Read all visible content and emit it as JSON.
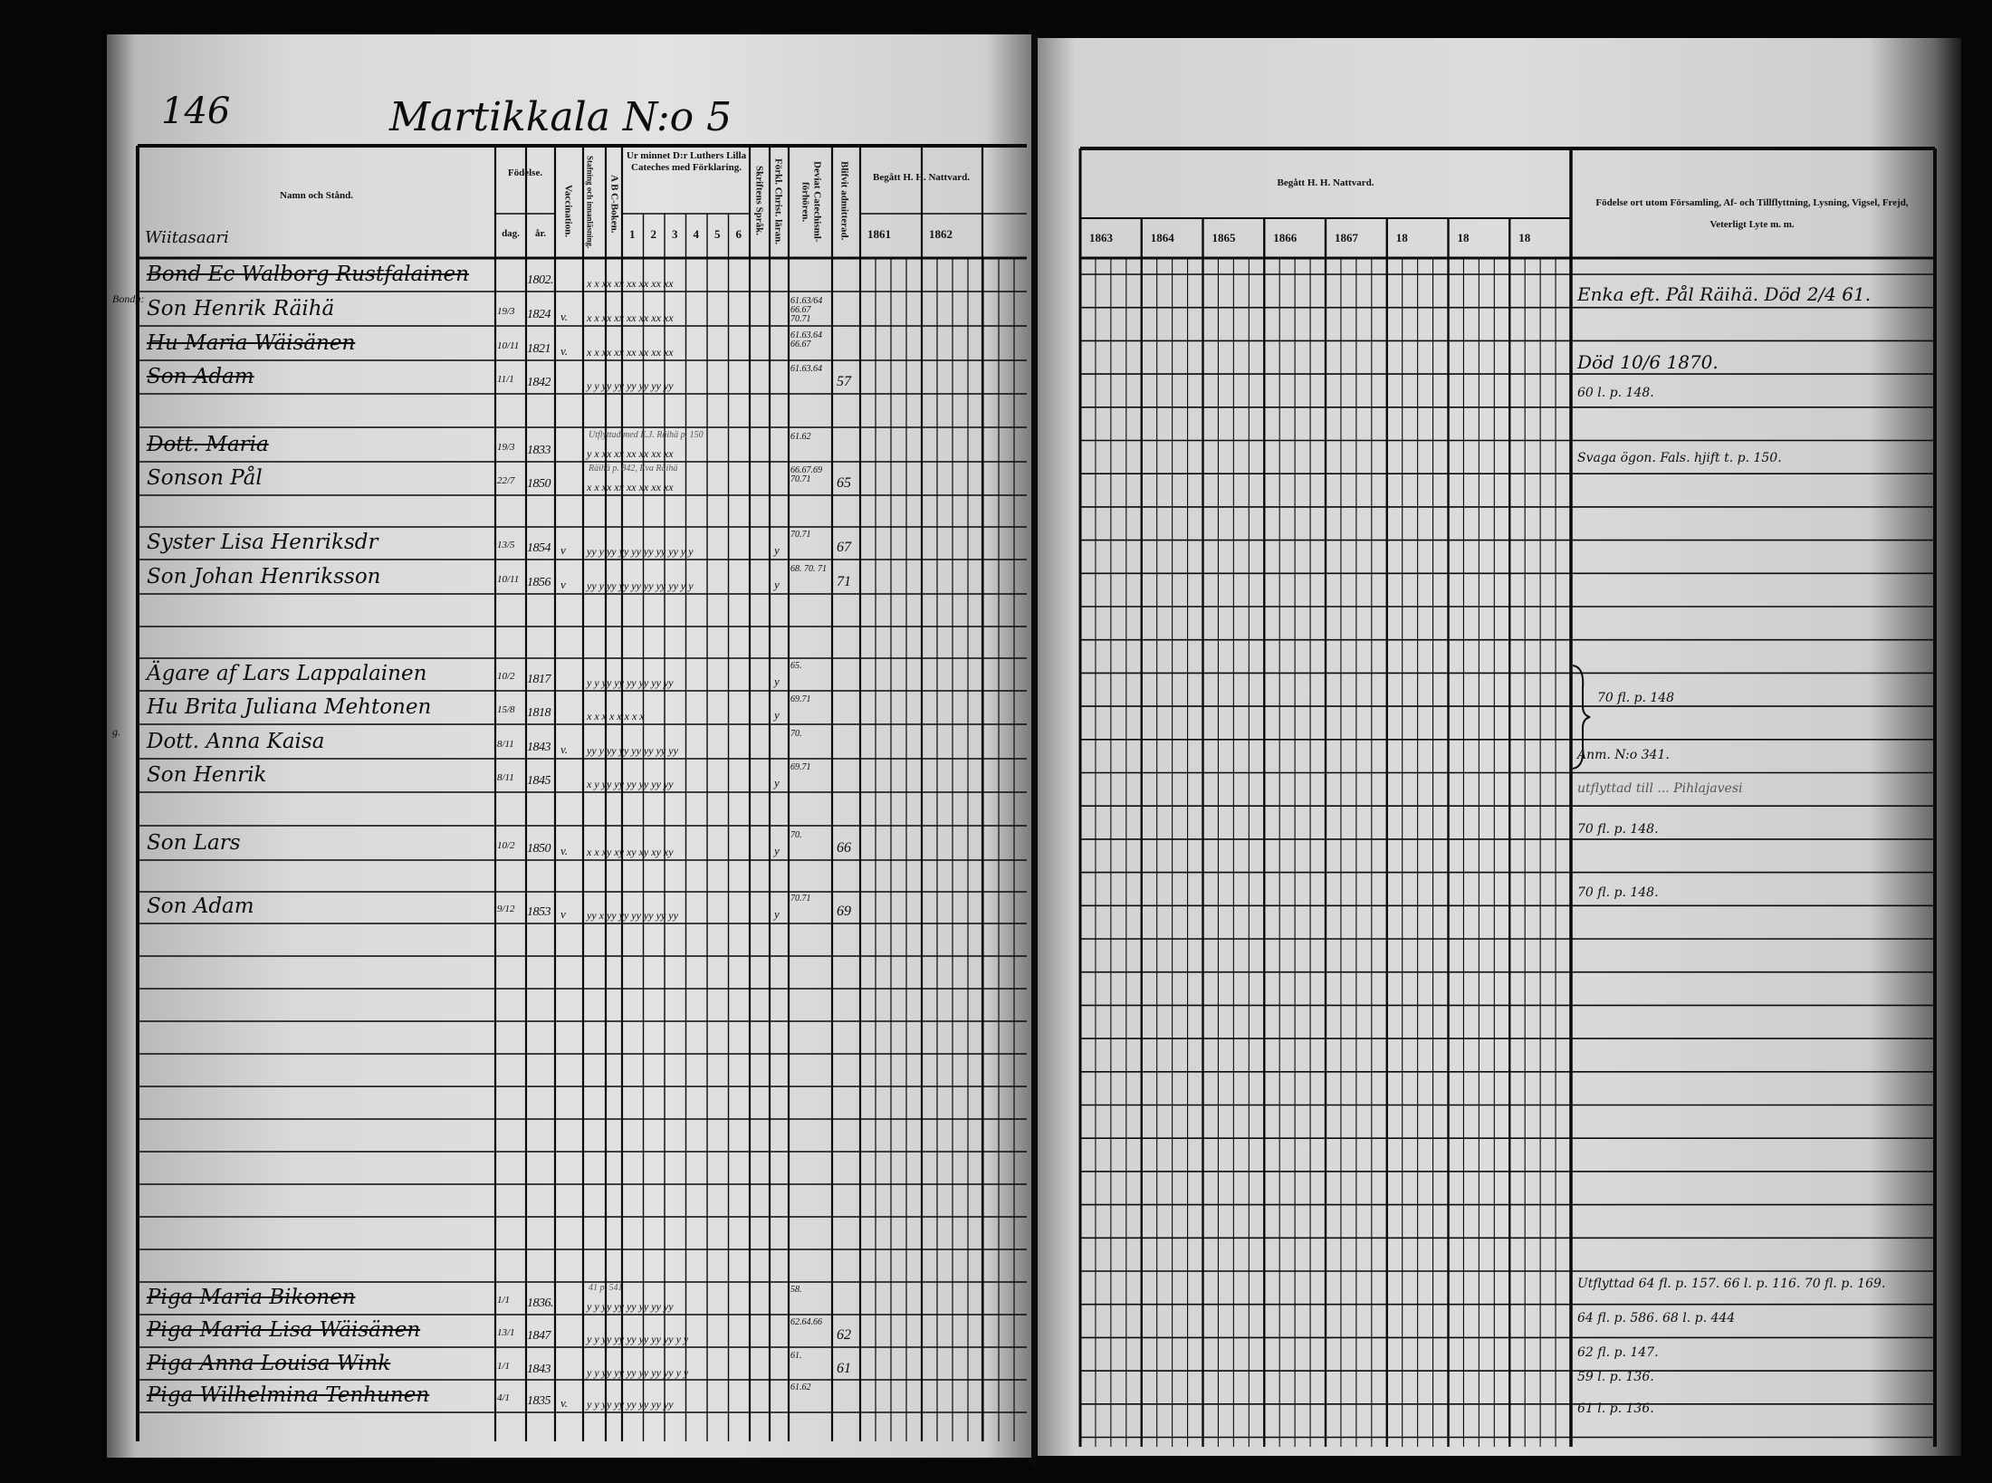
{
  "header": {
    "page_number": "146",
    "title": "Martikkala N:o 5",
    "village": "Wiitasaari"
  },
  "left_columns": {
    "name": "Namn och Stånd.",
    "birth": "Födelse.",
    "birth_day": "dag.",
    "birth_year": "år.",
    "vaccination": "Vaccination.",
    "spelling": "Stafning och innanläsning.",
    "abc": "A B C-Boken.",
    "catechism": "Ur minnet D:r Luthers Lilla Cateches med Förklaring.",
    "catechism_parts": [
      "1",
      "2",
      "3",
      "4",
      "5",
      "6"
    ],
    "scripture": "Skriftens Språk.",
    "christian_doctrine": "Förkl. Christ. läran.",
    "catechism_hearings": "Deviat Catechisml-förhören.",
    "admitted": "Blifvit admitterad.",
    "communion": "Begått H. H. Nattvard.",
    "communion_years": [
      "1861",
      "1862"
    ]
  },
  "right_columns": {
    "communion": "Begått H. H. Nattvard.",
    "communion_years": [
      "1863",
      "1864",
      "1865",
      "1866",
      "1867",
      "18",
      "18",
      "18"
    ],
    "remarks": "Födelse ort utom Församling, Af- och Tillflyttning, Lysning, Vigsel, Frejd, Veterligt Lyte m. m."
  },
  "entries": [
    {
      "name": "Bond Ec Walborg Rustfalainen",
      "struck": true,
      "day": "",
      "year": "1802.",
      "vacc": "",
      "marks": "x  x  xx xx xx xx xx xx",
      "scripture": "",
      "hearings": "",
      "admitted": "",
      "prefix": ""
    },
    {
      "name": "Son Henrik Räihä",
      "struck": false,
      "day": "19/3",
      "year": "1824",
      "vacc": "v.",
      "marks": "x  x  xx xx xx xx xx xx",
      "scripture": "",
      "hearings": "61.63/64 66.67 70.71",
      "admitted": "",
      "prefix": "Bondg:"
    },
    {
      "name": "Hu Maria Wäisänen",
      "struck": true,
      "day": "10/11",
      "year": "1821",
      "vacc": "v.",
      "marks": "x  x  xx xx xx xx xx xx",
      "scripture": "",
      "hearings": "61.63.64 66.67",
      "admitted": "",
      "prefix": ""
    },
    {
      "name": "Son Adam",
      "struck": true,
      "day": "11/1",
      "year": "1842",
      "vacc": "",
      "marks": "y  y  yy yy yy yy yy yy",
      "scripture": "",
      "hearings": "61.63.64",
      "admitted": "57",
      "prefix": ""
    },
    {
      "name": "Dott. Maria",
      "struck": true,
      "day": "19/3",
      "year": "1833",
      "vacc": "",
      "marks": "y  x  xx xx xx xx xx xx",
      "scripture": "",
      "hearings": "61.62",
      "admitted": "",
      "prefix": "",
      "note": "Utflyttad med E.J. Räihä p. 150"
    },
    {
      "name": "Sonson Pål",
      "struck": false,
      "day": "22/7",
      "year": "1850",
      "vacc": "",
      "marks": "x  x  xx xx xx xx xx xx",
      "scripture": "",
      "hearings": "66.67.69 70.71",
      "admitted": "65",
      "prefix": "",
      "note": "Räihä p. 842, Eva Räihä"
    },
    {
      "name": "Syster Lisa Henriksdr",
      "struck": false,
      "day": "13/5",
      "year": "1854",
      "vacc": "v",
      "marks": "yy y  yy yy yy yy yy yy  y  y",
      "scripture": "y",
      "hearings": "70.71",
      "admitted": "67",
      "prefix": ""
    },
    {
      "name": "Son Johan Henriksson",
      "struck": false,
      "day": "10/11",
      "year": "1856",
      "vacc": "v",
      "marks": "yy y  yy yy yy yy yy yy  y  y",
      "scripture": "y",
      "hearings": "68. 70. 71",
      "admitted": "71",
      "prefix": ""
    },
    {
      "name": "Ägare af Lars Lappalainen",
      "struck": false,
      "day": "10/2",
      "year": "1817",
      "vacc": "",
      "marks": "y  y  yy yy yy yy yy yy",
      "scripture": "y",
      "hearings": "65.",
      "admitted": "",
      "prefix": ""
    },
    {
      "name": "Hu Brita Juliana Mehtonen",
      "struck": false,
      "day": "15/8",
      "year": "1818",
      "vacc": "",
      "marks": "x  x  x  x  x  x  x  x",
      "scripture": "y",
      "hearings": "69.71",
      "admitted": "",
      "prefix": ""
    },
    {
      "name": "Dott. Anna Kaisa",
      "struck": false,
      "day": "8/11",
      "year": "1843",
      "vacc": "v.",
      "marks": "yy y  yy yy yy yy yy yy",
      "scripture": "",
      "hearings": "70.",
      "admitted": "",
      "prefix": "g."
    },
    {
      "name": "Son Henrik",
      "struck": false,
      "day": "8/11",
      "year": "1845",
      "vacc": "",
      "marks": "x  y  yy yy yy yy yy yy",
      "scripture": "y",
      "hearings": "69.71",
      "admitted": "",
      "prefix": ""
    },
    {
      "name": "Son Lars",
      "struck": false,
      "day": "10/2",
      "year": "1850",
      "vacc": "v.",
      "marks": "x  x  xy xy xy xy xy xy",
      "scripture": "y",
      "hearings": "70.",
      "admitted": "66",
      "prefix": ""
    },
    {
      "name": "Son Adam",
      "struck": false,
      "day": "9/12",
      "year": "1853",
      "vacc": "v",
      "marks": "yy x  yy yy yy yy yy yy",
      "scripture": "y",
      "hearings": "70.71",
      "admitted": "69",
      "prefix": ""
    },
    {
      "name": "Piga Maria Bikonen",
      "struck": true,
      "day": "1/1",
      "year": "1836.",
      "vacc": "",
      "marks": "y  y  yy yy yy yy yy yy",
      "scripture": "",
      "hearings": "58.",
      "admitted": "",
      "prefix": "",
      "note": "41 p. 541"
    },
    {
      "name": "Piga Maria Lisa Wäisänen",
      "struck": true,
      "day": "13/1",
      "year": "1847",
      "vacc": "",
      "marks": "y  y  yy yy yy yy yy yy  y  y",
      "scripture": "",
      "hearings": "62.64.66",
      "admitted": "62",
      "prefix": ""
    },
    {
      "name": "Piga Anna Louisa Wink",
      "struck": true,
      "day": "1/1",
      "year": "1843",
      "vacc": "",
      "marks": "y  y  yy yy yy yy yy yy  y  y",
      "scripture": "",
      "hearings": "61.",
      "admitted": "61",
      "prefix": ""
    },
    {
      "name": "Piga Wilhelmina Tenhunen",
      "struck": true,
      "day": "4/1",
      "year": "1835",
      "vacc": "v.",
      "marks": "y  y  yy yy yy yy yy yy",
      "scripture": "",
      "hearings": "61.62",
      "admitted": "",
      "prefix": ""
    }
  ],
  "remarks": [
    {
      "text": "Enka eft. Pål Räihä. Död 2/4 61."
    },
    {
      "text": "Död 10/6 1870."
    },
    {
      "text": "60 l. p. 148."
    },
    {
      "text": "Svaga ögon. Fals. hjift t. p. 150."
    },
    {
      "text": "70 fl. p. 148"
    },
    {
      "text": "Anm. N:o 341."
    },
    {
      "text": "utflyttad till ... Pihlajavesi"
    },
    {
      "text": "70 fl. p. 148."
    },
    {
      "text": "70 fl. p. 148."
    },
    {
      "text": "Utflyttad 64 fl. p. 157. 66 l. p. 116. 70 fl. p. 169."
    },
    {
      "text": "64 fl. p. 586. 68 l. p. 444"
    },
    {
      "text": "62 fl. p. 147."
    },
    {
      "text": "59 l. p. 136."
    },
    {
      "text": "61 l. p. 136."
    }
  ],
  "colors": {
    "paper": "#dcdcdc",
    "ink": "#111111",
    "background": "#060606"
  }
}
